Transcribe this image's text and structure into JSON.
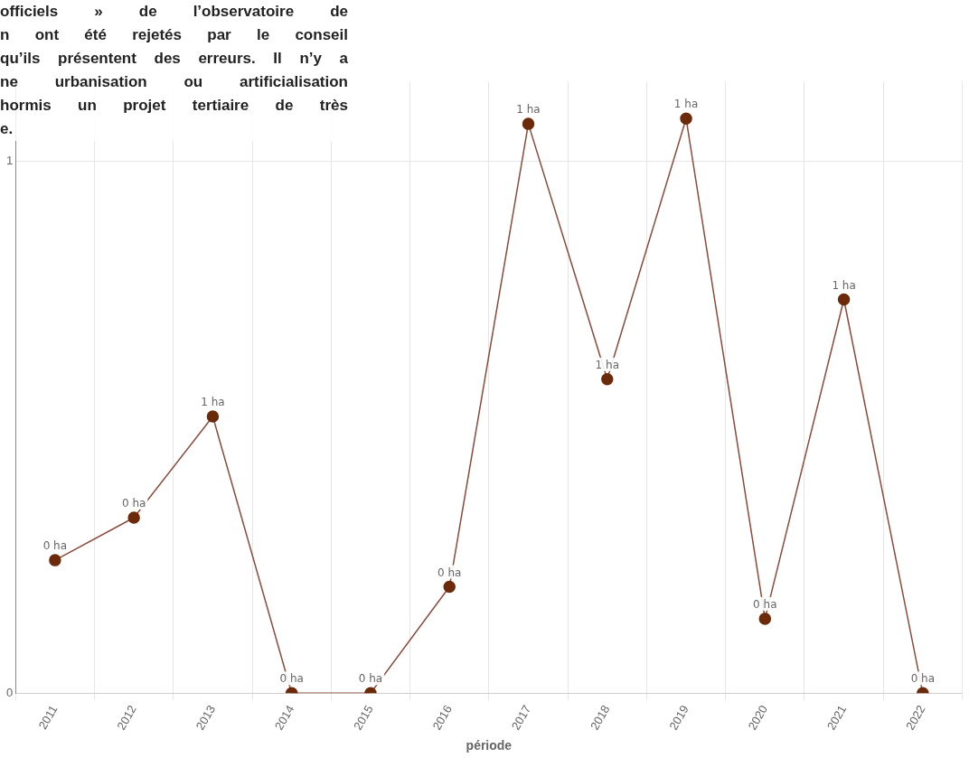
{
  "chart_data": {
    "type": "line",
    "xlabel": "période",
    "categories": [
      "2011",
      "2012",
      "2013",
      "2014",
      "2015",
      "2016",
      "2017",
      "2018",
      "2019",
      "2020",
      "2021",
      "2022"
    ],
    "series": [
      {
        "color": "#8b4a3a",
        "values": [
          0.25,
          0.33,
          0.52,
          0,
          0,
          0.2,
          1.07,
          0.59,
          1.08,
          0.14,
          0.74,
          0
        ]
      }
    ],
    "value_labels": [
      "0 ha",
      "0 ha",
      "1 ha",
      "0 ha",
      "0 ha",
      "0 ha",
      "1 ha",
      "1 ha",
      "1 ha",
      "0 ha",
      "1 ha",
      "0 ha"
    ],
    "ylim": [
      0,
      1.15
    ],
    "yticks": [
      0,
      1
    ],
    "grid": true,
    "legend": false,
    "marker": "circle",
    "line_style": "solid",
    "annotations": [
      "officiels » de l’observatoire de\nn ont été rejetés par le conseil\nqu’ils présentent des erreurs. Il n’y a\nne urbanisation ou artificialisation\nhormis un projet tertiaire de très\ne."
    ]
  }
}
